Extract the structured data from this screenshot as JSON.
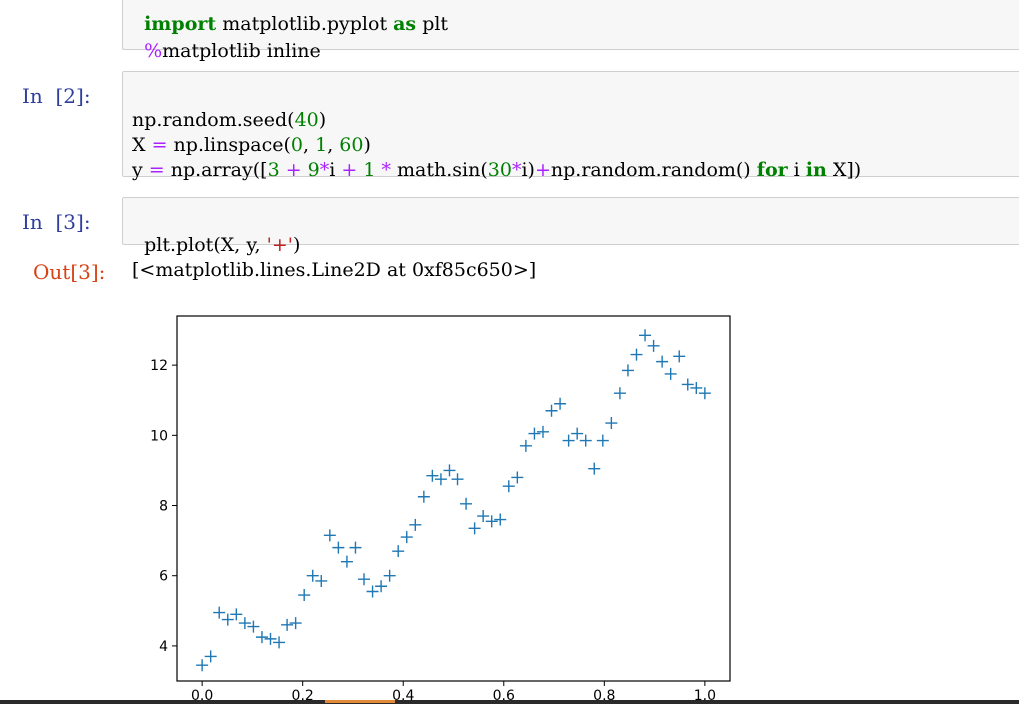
{
  "cell1": {
    "line1_kw": "import",
    "line1_mod": "matplotlib.pyplot",
    "line1_as": "as",
    "line1_alias": "plt",
    "line2_magic": "%",
    "line2_rest": "matplotlib inline"
  },
  "cell2": {
    "prompt": "In  [2]:",
    "line1": [
      "np.random.seed(",
      "40",
      ")"
    ],
    "line2": [
      "X ",
      "=",
      " np.linspace(",
      "0",
      ", ",
      "1",
      ", ",
      "60",
      ")"
    ],
    "line3": [
      "y ",
      "=",
      " np.array([",
      "3",
      " ",
      "+",
      " ",
      "9",
      "*",
      "i ",
      "+",
      " ",
      "1",
      " ",
      "*",
      " math.sin(",
      "30",
      "*",
      "i)",
      "+",
      "np.random.random() ",
      "for",
      " i ",
      "in",
      " X])"
    ]
  },
  "cell3": {
    "prompt": "In  [3]:",
    "code_pre": "plt.plot(X, y, ",
    "code_str": "'+'",
    "code_post": ")",
    "out_prompt": "Out[3]:",
    "out_text": "[<matplotlib.lines.Line2D at 0xf85c650>]"
  },
  "chart_data": {
    "type": "scatter",
    "marker": "+",
    "color": "#1f77b4",
    "xlim": [
      -0.05,
      1.05
    ],
    "ylim": [
      3.0,
      13.4
    ],
    "xticks": [
      "0.0",
      "0.2",
      "0.4",
      "0.6",
      "0.8",
      "1.0"
    ],
    "yticks": [
      "4",
      "6",
      "8",
      "10",
      "12"
    ],
    "xtick_values": [
      0.0,
      0.2,
      0.4,
      0.6,
      0.8,
      1.0
    ],
    "ytick_values": [
      4,
      6,
      8,
      10,
      12
    ],
    "x": [
      0.0,
      0.017,
      0.034,
      0.051,
      0.068,
      0.085,
      0.102,
      0.119,
      0.136,
      0.153,
      0.169,
      0.186,
      0.203,
      0.22,
      0.237,
      0.254,
      0.271,
      0.288,
      0.305,
      0.322,
      0.339,
      0.356,
      0.373,
      0.39,
      0.407,
      0.424,
      0.441,
      0.458,
      0.475,
      0.492,
      0.508,
      0.525,
      0.542,
      0.559,
      0.576,
      0.593,
      0.61,
      0.627,
      0.644,
      0.661,
      0.678,
      0.695,
      0.712,
      0.729,
      0.746,
      0.763,
      0.78,
      0.797,
      0.814,
      0.831,
      0.847,
      0.864,
      0.881,
      0.898,
      0.915,
      0.932,
      0.949,
      0.966,
      0.983,
      1.0
    ],
    "y": [
      3.45,
      3.7,
      4.95,
      4.75,
      4.9,
      4.65,
      4.55,
      4.25,
      4.2,
      4.1,
      4.6,
      4.65,
      5.45,
      6.0,
      5.85,
      7.15,
      6.8,
      6.4,
      6.8,
      5.9,
      5.55,
      5.7,
      6.0,
      6.7,
      7.1,
      7.45,
      8.25,
      8.85,
      8.75,
      9.0,
      8.75,
      8.05,
      7.35,
      7.7,
      7.55,
      7.6,
      8.55,
      8.8,
      9.7,
      10.05,
      10.1,
      10.7,
      10.9,
      9.85,
      10.05,
      9.85,
      9.05,
      9.85,
      10.35,
      11.2,
      11.85,
      12.3,
      12.85,
      12.55,
      12.1,
      11.75,
      12.25,
      11.45,
      11.35,
      11.2
    ]
  }
}
